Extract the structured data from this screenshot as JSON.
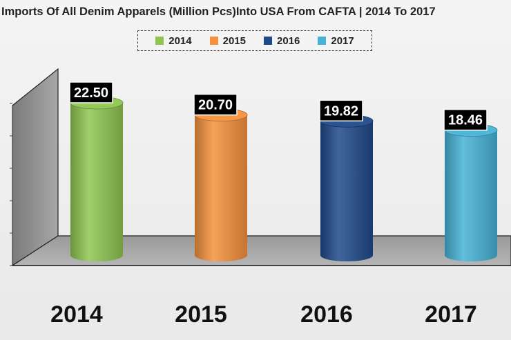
{
  "chart_data": {
    "type": "bar",
    "title": "Imports Of All Denim Apparels (Million Pcs)Into USA From CAFTA | 2014 To 2017",
    "categories": [
      "2014",
      "2015",
      "2016",
      "2017"
    ],
    "values": [
      22.5,
      20.7,
      19.82,
      18.46
    ],
    "value_labels": [
      "22.50",
      "20.70",
      "19.82",
      "18.46"
    ],
    "series": [
      {
        "name": "2014",
        "color": "#8fc650"
      },
      {
        "name": "2015",
        "color": "#f6913d"
      },
      {
        "name": "2016",
        "color": "#1f4a8a"
      },
      {
        "name": "2017",
        "color": "#46b3d6"
      }
    ],
    "ylim": [
      0,
      25
    ],
    "xlabel": "",
    "ylabel": "",
    "legend_position": "top-center",
    "grid": false,
    "shape": "3d-cylinder"
  }
}
